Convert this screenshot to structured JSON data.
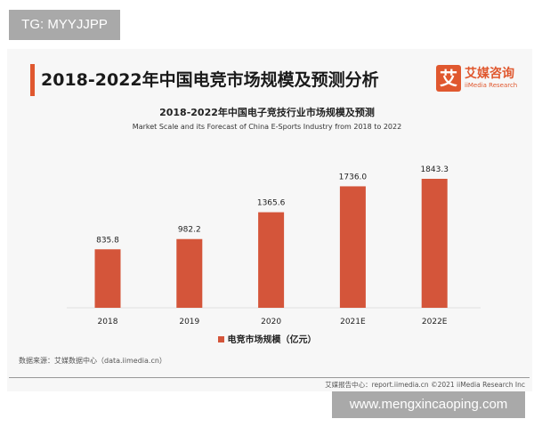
{
  "watermark_top": "TG: MYYJJPP",
  "watermark_bottom": "www.mengxincaoping.com",
  "header": {
    "title": "2018-2022年中国电竞市场规模及预测分析"
  },
  "logo": {
    "mark": "艾",
    "name_cn": "艾媒咨询",
    "name_en": "iiMedia Research"
  },
  "colors": {
    "accent": "#e0582f",
    "bar": "#d4553a"
  },
  "chart_data": {
    "type": "bar",
    "title": "2018-2022年中国电子竞技行业市场规模及预测",
    "subtitle": "Market Scale and its Forecast of China E-Sports Industry from 2018 to 2022",
    "categories": [
      "2018",
      "2019",
      "2020",
      "2021E",
      "2022E"
    ],
    "series": [
      {
        "name": "电竞市场规模（亿元）",
        "values": [
          835.8,
          982.2,
          1365.6,
          1736.0,
          1843.3
        ]
      }
    ],
    "data_labels": [
      "835.8",
      "982.2",
      "1365.6",
      "1736.0",
      "1843.3"
    ],
    "ylim": [
      0,
      2000
    ],
    "grid": false,
    "legend": "bottom"
  },
  "footer": {
    "source": "数据来源：艾媒数据中心（data.iimedia.cn）",
    "credit": "艾媒报告中心：report.iimedia.cn   ©2021  iiMedia Research  Inc"
  }
}
